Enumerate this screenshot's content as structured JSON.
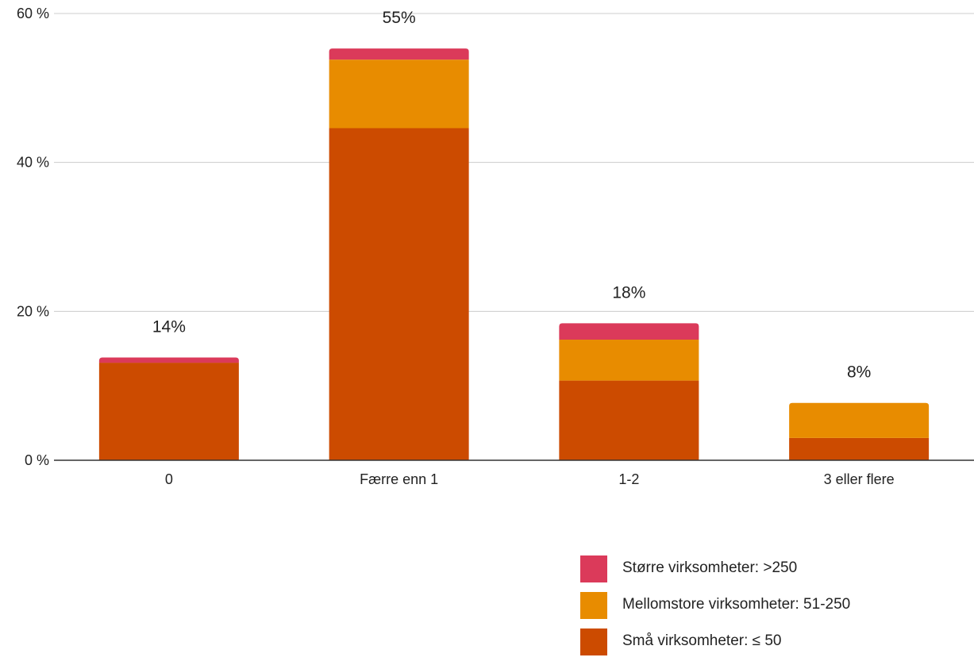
{
  "chart_data": {
    "type": "bar",
    "stacked": true,
    "categories": [
      "0",
      "Færre enn 1",
      "1-2",
      "3 eller flere"
    ],
    "series": [
      {
        "name": "Små virksomheter: ≤ 50",
        "color": "#CC4B00",
        "values": [
          13.1,
          44.6,
          10.7,
          3.0
        ]
      },
      {
        "name": "Mellomstore virksomheter: 51-250",
        "color": "#E88C00",
        "values": [
          0,
          9.2,
          5.5,
          4.7
        ]
      },
      {
        "name": "Større virksomheter: >250",
        "color": "#DB3A5A",
        "values": [
          0.7,
          1.5,
          2.2,
          0
        ]
      }
    ],
    "totals": [
      "14%",
      "55%",
      "18%",
      "8%"
    ],
    "ylim": [
      0,
      60
    ],
    "yticks": [
      0,
      20,
      40,
      60
    ],
    "ytick_labels": [
      "0 %",
      "20 %",
      "40 %",
      "60 %"
    ],
    "title": "",
    "xlabel": "",
    "ylabel": "",
    "grid": true,
    "legend_position": "bottom-right"
  },
  "legend": {
    "items": [
      {
        "label": "Større virksomheter: >250",
        "color": "#DB3A5A"
      },
      {
        "label": "Mellomstore virksomheter: 51-250",
        "color": "#E88C00"
      },
      {
        "label": "Små virksomheter: ≤ 50",
        "color": "#CC4B00"
      }
    ]
  }
}
